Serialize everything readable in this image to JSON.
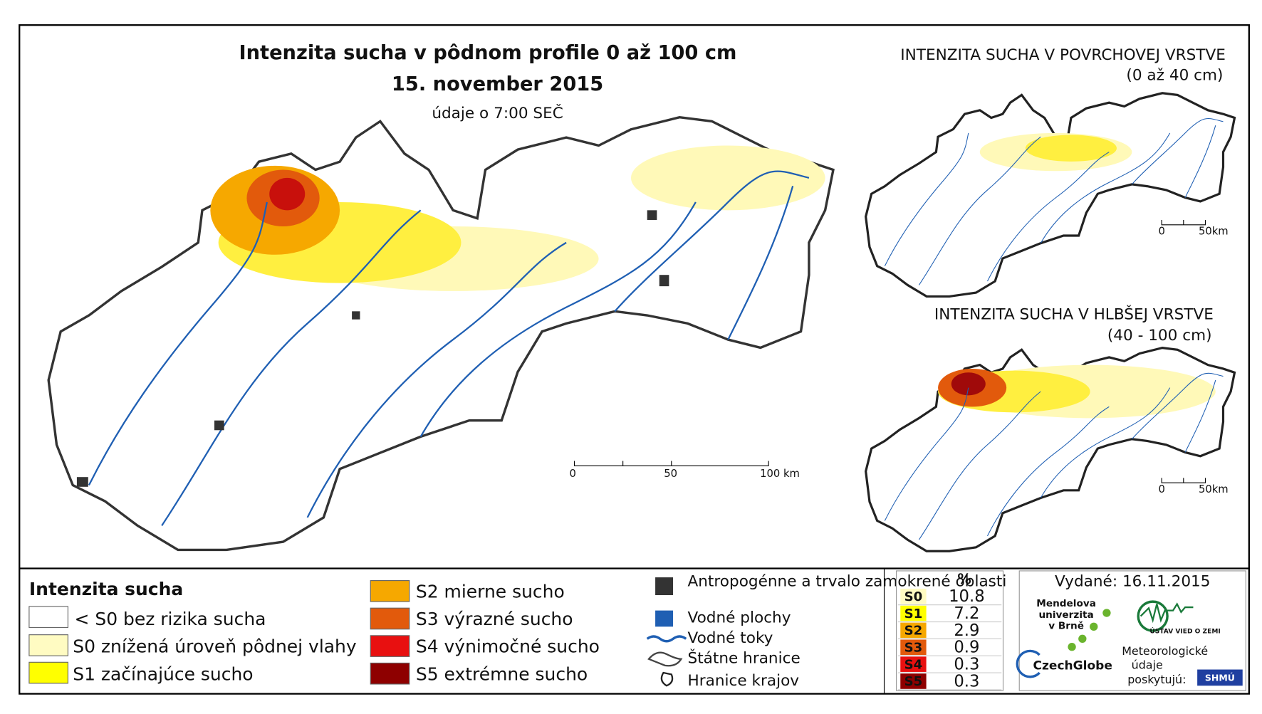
{
  "header": {
    "title": "Intenzita sucha v pôdnom profile 0 až 100 cm",
    "date": "15. november 2015",
    "time": "údaje o 7:00 SEČ"
  },
  "main_map": {
    "scale": [
      "0",
      "50",
      "100 km"
    ]
  },
  "insets": [
    {
      "title": "INTENZITA SUCHA V POVRCHOVEJ VRSTVE",
      "subtitle": "(0 až 40 cm)",
      "scale": [
        "0",
        "50km"
      ]
    },
    {
      "title": "INTENZITA SUCHA V HLBŠEJ VRSTVE",
      "subtitle": "(40 - 100 cm)",
      "scale": [
        "0",
        "50km"
      ]
    }
  ],
  "legend": {
    "title": "Intenzita sucha",
    "items": [
      "< S0 bez rizika sucha",
      "S0 znížená úroveň pôdnej vlahy",
      "S1 začínajúce sucho",
      "S2 mierne sucho",
      "S3 výrazné sucho",
      "S4 výnimočné sucho",
      "S5 extrémne sucho"
    ]
  },
  "features": [
    "Antropogénne a trvalo zamokrené oblasti",
    "Vodné plochy",
    "Vodné toky",
    "Štátne hranice",
    "Hranice krajov"
  ],
  "table": {
    "header": "%",
    "rows": [
      [
        "S0",
        10.8
      ],
      [
        "S1",
        7.2
      ],
      [
        "S2",
        2.9
      ],
      [
        "S3",
        0.9
      ],
      [
        "S4",
        0.3
      ],
      [
        "S5",
        0.3
      ]
    ]
  },
  "footer": {
    "issued": "Vydané: 16.11.2015",
    "mendel": [
      "Mendelova",
      "univerzita",
      "v Brně"
    ],
    "czechglobe": "CzechGlobe",
    "uvz": "ÚSTAV VIED O ZEMI",
    "provider": [
      "Meteorologické",
      "údaje",
      "poskytujú:"
    ],
    "shmu": "SHMÚ"
  }
}
